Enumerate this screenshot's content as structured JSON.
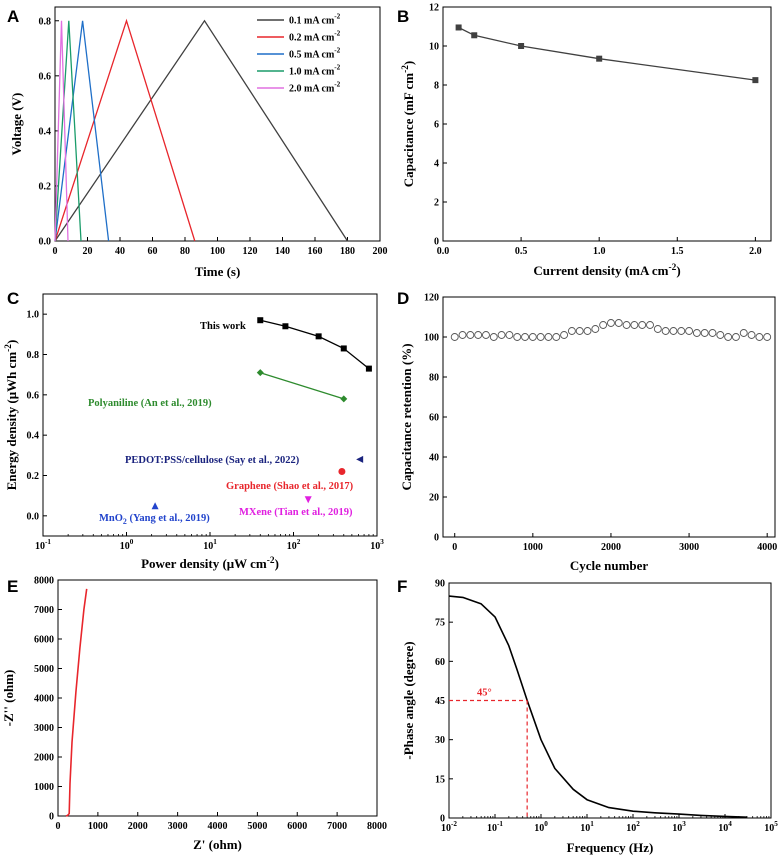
{
  "chart_data": [
    {
      "panel": "A",
      "type": "line",
      "xlabel": "Time (s)",
      "ylabel": "Voltage (V)",
      "xlim": [
        0,
        200
      ],
      "ylim": [
        0,
        0.85
      ],
      "xticks": [
        0,
        20,
        40,
        60,
        80,
        100,
        120,
        140,
        160,
        180,
        200
      ],
      "yticks": [
        0.0,
        0.2,
        0.4,
        0.6,
        0.8
      ],
      "legend_position": "top-right",
      "series": [
        {
          "name": "0.1 mA cm",
          "sup": "-2",
          "color": "#404040",
          "x": [
            0,
            92,
            180
          ],
          "y": [
            0,
            0.8,
            0
          ]
        },
        {
          "name": "0.2 mA cm",
          "sup": "-2",
          "color": "#e8262c",
          "x": [
            0,
            44,
            86
          ],
          "y": [
            0,
            0.8,
            0
          ]
        },
        {
          "name": "0.5 mA cm",
          "sup": "-2",
          "color": "#1f6fc8",
          "x": [
            0,
            17,
            33
          ],
          "y": [
            0,
            0.8,
            0
          ]
        },
        {
          "name": "1.0 mA cm",
          "sup": "-2",
          "color": "#1a9c6a",
          "x": [
            0,
            8.5,
            16
          ],
          "y": [
            0,
            0.8,
            0
          ]
        },
        {
          "name": "2.0 mA cm",
          "sup": "-2",
          "color": "#e070e0",
          "x": [
            0,
            4,
            8
          ],
          "y": [
            0,
            0.8,
            0
          ]
        }
      ]
    },
    {
      "panel": "B",
      "type": "line",
      "xlabel": "Current density (mA cm",
      "xlabel_sup": "-2",
      "xlabel_end": ")",
      "ylabel": "Capacitance (mF cm",
      "ylabel_sup": "-2",
      "ylabel_end": ")",
      "xlim": [
        0,
        2.1
      ],
      "ylim": [
        0,
        12
      ],
      "xticks": [
        "0.0",
        "0.5",
        "1.0",
        "1.5",
        "2.0"
      ],
      "yticks": [
        0,
        2,
        4,
        6,
        8,
        10,
        12
      ],
      "series": [
        {
          "name": "capacitance",
          "color": "#404040",
          "x": [
            0.1,
            0.2,
            0.5,
            1.0,
            2.0
          ],
          "y": [
            10.95,
            10.55,
            10.0,
            9.35,
            8.25
          ]
        }
      ]
    },
    {
      "panel": "C",
      "type": "scatter",
      "xscale": "log",
      "xlabel": "Power density (μW cm",
      "xlabel_sup": "-2",
      "xlabel_end": ")",
      "ylabel": "Energy density (μWh cm",
      "ylabel_sup": "-2",
      "ylabel_end": ")",
      "xlim": [
        0.1,
        1000
      ],
      "ylim": [
        -0.1,
        1.1
      ],
      "xticks": [
        {
          "b": "10",
          "e": "-1"
        },
        {
          "b": "10",
          "e": "0"
        },
        {
          "b": "10",
          "e": "1"
        },
        {
          "b": "10",
          "e": "2"
        },
        {
          "b": "10",
          "e": "3"
        }
      ],
      "yticks": [
        "0.0",
        "0.2",
        "0.4",
        "0.6",
        "0.8",
        "1.0"
      ],
      "series": [
        {
          "name": "This work",
          "color": "#000000",
          "marker": "square",
          "x": [
            40,
            80,
            200,
            400,
            800
          ],
          "y": [
            0.97,
            0.94,
            0.89,
            0.83,
            0.73
          ]
        },
        {
          "name": "Polyaniline (An et al., 2019)",
          "color": "#2e8b2e",
          "marker": "diamond",
          "x": [
            40,
            400
          ],
          "y": [
            0.71,
            0.58
          ]
        },
        {
          "name": "PEDOT:PSS/cellulose (Say et al., 2022)",
          "color": "#1a237e",
          "marker": "triangle-left",
          "x": [
            620
          ],
          "y": [
            0.28
          ]
        },
        {
          "name": "Graphene (Shao et al., 2017)",
          "color": "#e8262c",
          "marker": "circle",
          "x": [
            380
          ],
          "y": [
            0.22
          ]
        },
        {
          "name": "MXene (Tian et al., 2019)",
          "color": "#e020e0",
          "marker": "triangle-down",
          "x": [
            150
          ],
          "y": [
            0.08
          ]
        },
        {
          "name": "MnO2 (Yang et al., 2019)",
          "color": "#2244cc",
          "marker": "triangle-up",
          "x": [
            2.2
          ],
          "y": [
            0.05
          ]
        }
      ],
      "labels": {
        "this_work": "This work",
        "polyaniline": "Polyaniline (An et al., 2019)",
        "pedot": "PEDOT:PSS/cellulose (Say et al., 2022)",
        "graphene": "Graphene (Shao et al., 2017)",
        "mxene": "MXene  (Tian et al., 2019)",
        "mno2_a": "MnO",
        "mno2_sub": "2",
        "mno2_b": "  (Yang et al., 2019)"
      }
    },
    {
      "panel": "D",
      "type": "scatter",
      "xlabel": "Cycle number",
      "ylabel": "Capacitance retention (%)",
      "xlim": [
        -150,
        4100
      ],
      "ylim": [
        0,
        120
      ],
      "xticks": [
        0,
        1000,
        2000,
        3000,
        4000
      ],
      "yticks": [
        0,
        20,
        40,
        60,
        80,
        100,
        120
      ],
      "series": [
        {
          "name": "retention",
          "color": "#555555",
          "marker": "open-circle",
          "x": [
            0,
            100,
            200,
            300,
            400,
            500,
            600,
            700,
            800,
            900,
            1000,
            1100,
            1200,
            1300,
            1400,
            1500,
            1600,
            1700,
            1800,
            1900,
            2000,
            2100,
            2200,
            2300,
            2400,
            2500,
            2600,
            2700,
            2800,
            2900,
            3000,
            3100,
            3200,
            3300,
            3400,
            3500,
            3600,
            3700,
            3800,
            3900,
            4000
          ],
          "y": [
            100,
            101,
            101,
            101,
            101,
            100,
            101,
            101,
            100,
            100,
            100,
            100,
            100,
            100,
            101,
            103,
            103,
            103,
            104,
            106,
            107,
            107,
            106,
            106,
            106,
            106,
            104,
            103,
            103,
            103,
            103,
            102,
            102,
            102,
            101,
            100,
            100,
            102,
            101,
            100,
            100
          ]
        }
      ]
    },
    {
      "panel": "E",
      "type": "line",
      "xlabel": "Z' (ohm)",
      "ylabel": "-Z'' (ohm)",
      "xlim": [
        0,
        8000
      ],
      "ylim": [
        0,
        8000
      ],
      "xticks": [
        0,
        1000,
        2000,
        3000,
        4000,
        5000,
        6000,
        7000,
        8000
      ],
      "yticks": [
        0,
        1000,
        2000,
        3000,
        4000,
        5000,
        6000,
        7000,
        8000
      ],
      "series": [
        {
          "name": "nyquist",
          "color": "#e8262c",
          "x": [
            200,
            240,
            280,
            300,
            350,
            450,
            550,
            650,
            720
          ],
          "y": [
            0,
            20,
            80,
            1100,
            2500,
            4200,
            5700,
            7000,
            7700
          ]
        }
      ]
    },
    {
      "panel": "F",
      "type": "line",
      "xscale": "log",
      "xlabel": "Frequency (Hz)",
      "ylabel": "-Phase angle (degree)",
      "xlim": [
        0.01,
        100000
      ],
      "ylim": [
        0,
        90
      ],
      "xticks": [
        {
          "b": "10",
          "e": "-2"
        },
        {
          "b": "10",
          "e": "-1"
        },
        {
          "b": "10",
          "e": "0"
        },
        {
          "b": "10",
          "e": "1"
        },
        {
          "b": "10",
          "e": "2"
        },
        {
          "b": "10",
          "e": "3"
        },
        {
          "b": "10",
          "e": "4"
        },
        {
          "b": "10",
          "e": "5"
        }
      ],
      "yticks": [
        0,
        15,
        30,
        45,
        60,
        75,
        90
      ],
      "annotation": {
        "text": "45°",
        "x": 0.5,
        "y": 45,
        "color": "#e8262c"
      },
      "series": [
        {
          "name": "phase",
          "color": "#000000",
          "x": [
            0.01,
            0.02,
            0.05,
            0.1,
            0.2,
            0.3,
            0.5,
            1,
            2,
            5,
            10,
            30,
            100,
            300,
            1000,
            3000,
            10000,
            30000
          ],
          "y": [
            85,
            84.5,
            82,
            77,
            66,
            57,
            45,
            30,
            19,
            11,
            7,
            4,
            2.6,
            2,
            1.5,
            1.0,
            0.6,
            0.3
          ]
        }
      ]
    }
  ]
}
